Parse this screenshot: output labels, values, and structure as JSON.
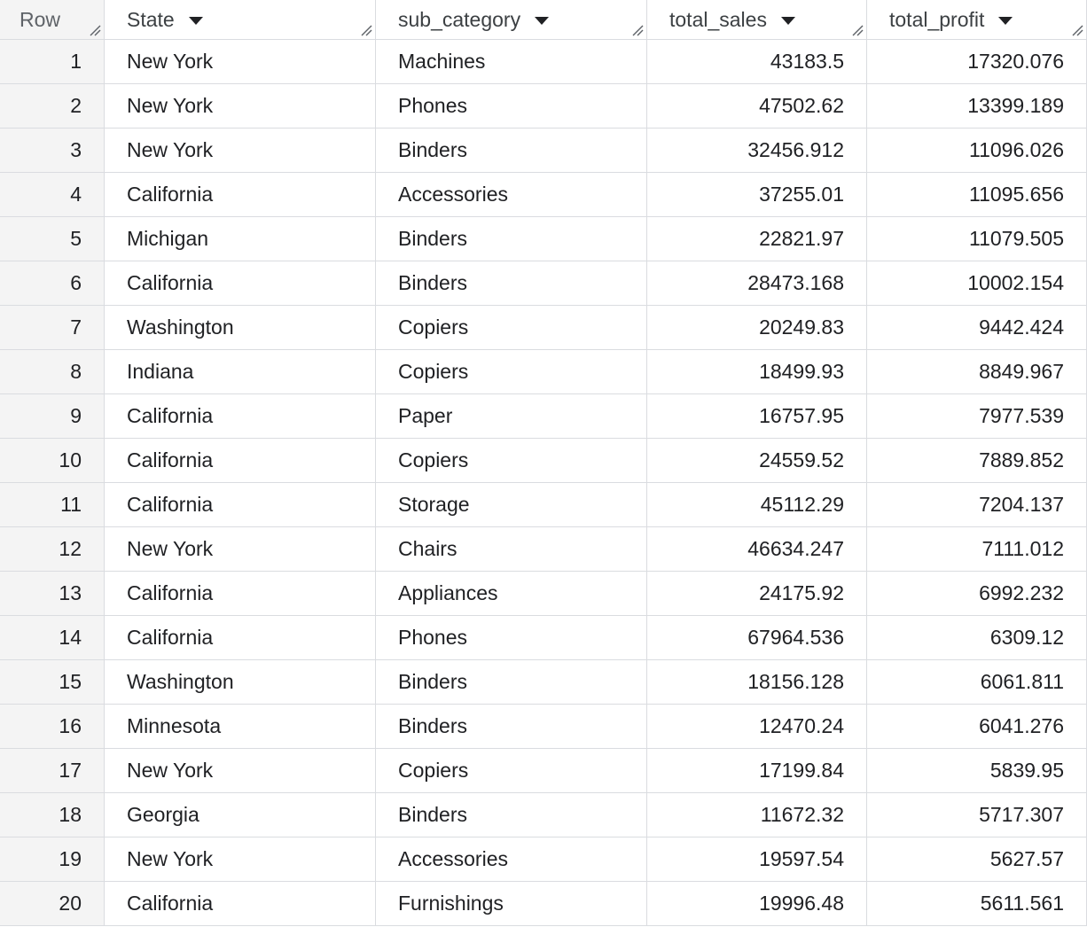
{
  "table": {
    "columns": [
      {
        "label": "Row"
      },
      {
        "label": "State"
      },
      {
        "label": "sub_category"
      },
      {
        "label": "total_sales"
      },
      {
        "label": "total_profit"
      }
    ],
    "rows": [
      {
        "row": "1",
        "state": "New York",
        "sub_category": "Machines",
        "total_sales": "43183.5",
        "total_profit": "17320.076"
      },
      {
        "row": "2",
        "state": "New York",
        "sub_category": "Phones",
        "total_sales": "47502.62",
        "total_profit": "13399.189"
      },
      {
        "row": "3",
        "state": "New York",
        "sub_category": "Binders",
        "total_sales": "32456.912",
        "total_profit": "11096.026"
      },
      {
        "row": "4",
        "state": "California",
        "sub_category": "Accessories",
        "total_sales": "37255.01",
        "total_profit": "11095.656"
      },
      {
        "row": "5",
        "state": "Michigan",
        "sub_category": "Binders",
        "total_sales": "22821.97",
        "total_profit": "11079.505"
      },
      {
        "row": "6",
        "state": "California",
        "sub_category": "Binders",
        "total_sales": "28473.168",
        "total_profit": "10002.154"
      },
      {
        "row": "7",
        "state": "Washington",
        "sub_category": "Copiers",
        "total_sales": "20249.83",
        "total_profit": "9442.424"
      },
      {
        "row": "8",
        "state": "Indiana",
        "sub_category": "Copiers",
        "total_sales": "18499.93",
        "total_profit": "8849.967"
      },
      {
        "row": "9",
        "state": "California",
        "sub_category": "Paper",
        "total_sales": "16757.95",
        "total_profit": "7977.539"
      },
      {
        "row": "10",
        "state": "California",
        "sub_category": "Copiers",
        "total_sales": "24559.52",
        "total_profit": "7889.852"
      },
      {
        "row": "11",
        "state": "California",
        "sub_category": "Storage",
        "total_sales": "45112.29",
        "total_profit": "7204.137"
      },
      {
        "row": "12",
        "state": "New York",
        "sub_category": "Chairs",
        "total_sales": "46634.247",
        "total_profit": "7111.012"
      },
      {
        "row": "13",
        "state": "California",
        "sub_category": "Appliances",
        "total_sales": "24175.92",
        "total_profit": "6992.232"
      },
      {
        "row": "14",
        "state": "California",
        "sub_category": "Phones",
        "total_sales": "67964.536",
        "total_profit": "6309.12"
      },
      {
        "row": "15",
        "state": "Washington",
        "sub_category": "Binders",
        "total_sales": "18156.128",
        "total_profit": "6061.811"
      },
      {
        "row": "16",
        "state": "Minnesota",
        "sub_category": "Binders",
        "total_sales": "12470.24",
        "total_profit": "6041.276"
      },
      {
        "row": "17",
        "state": "New York",
        "sub_category": "Copiers",
        "total_sales": "17199.84",
        "total_profit": "5839.95"
      },
      {
        "row": "18",
        "state": "Georgia",
        "sub_category": "Binders",
        "total_sales": "11672.32",
        "total_profit": "5717.307"
      },
      {
        "row": "19",
        "state": "New York",
        "sub_category": "Accessories",
        "total_sales": "19597.54",
        "total_profit": "5627.57"
      },
      {
        "row": "20",
        "state": "California",
        "sub_category": "Furnishings",
        "total_sales": "19996.48",
        "total_profit": "5611.561"
      }
    ]
  },
  "icons": {
    "sort": "sort-dropdown-icon",
    "resize": "column-resize-icon"
  },
  "colors": {
    "gridline": "#dadce0",
    "row_header_bg": "#f4f4f4",
    "text": "#202124"
  }
}
